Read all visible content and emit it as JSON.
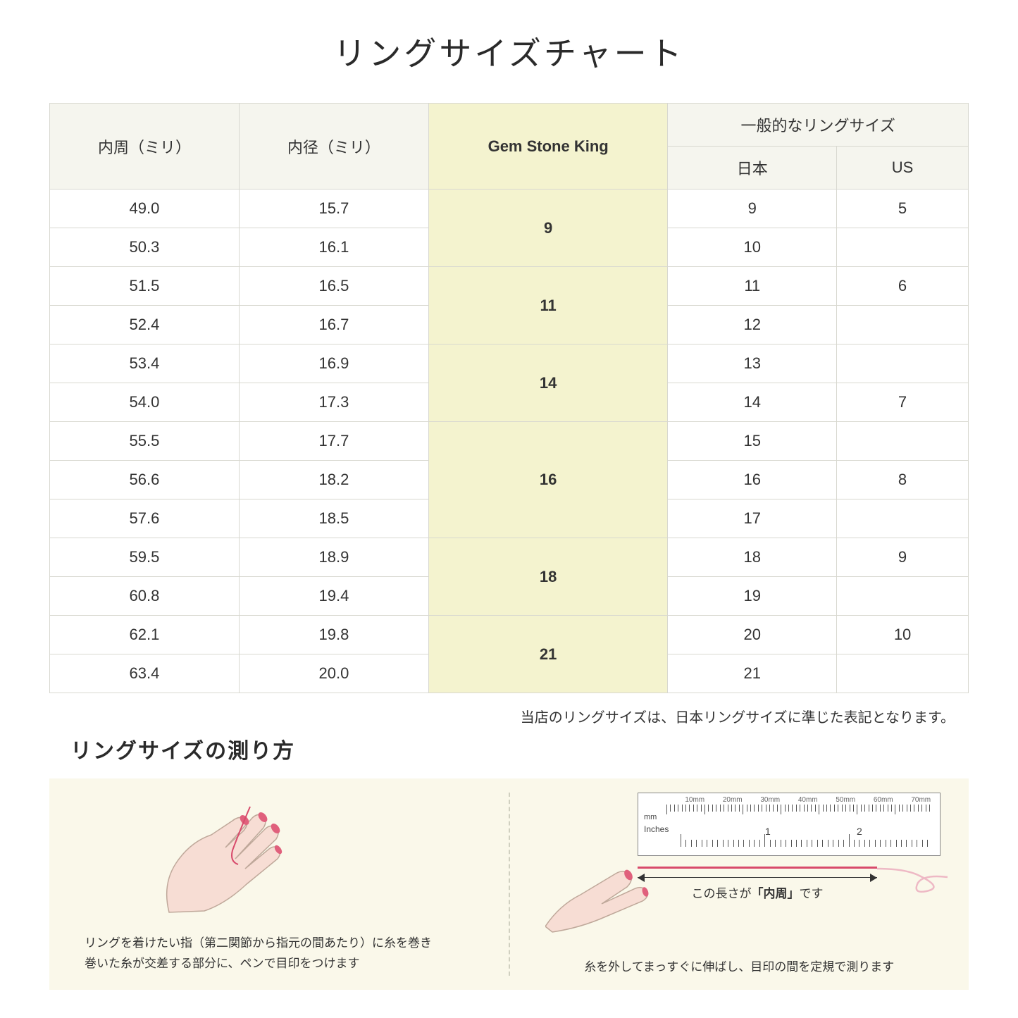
{
  "title": "リングサイズチャート",
  "table": {
    "headers": {
      "circumference": "内周（ミリ）",
      "diameter": "内径（ミリ）",
      "gsk": "Gem Stone King",
      "general": "一般的なリングサイズ",
      "japan": "日本",
      "us": "US"
    },
    "groups": [
      {
        "gsk": "9",
        "rows": [
          {
            "c": "49.0",
            "d": "15.7",
            "jp": "9",
            "us": "5"
          },
          {
            "c": "50.3",
            "d": "16.1",
            "jp": "10",
            "us": ""
          }
        ]
      },
      {
        "gsk": "11",
        "rows": [
          {
            "c": "51.5",
            "d": "16.5",
            "jp": "11",
            "us": "6"
          },
          {
            "c": "52.4",
            "d": "16.7",
            "jp": "12",
            "us": ""
          }
        ]
      },
      {
        "gsk": "14",
        "rows": [
          {
            "c": "53.4",
            "d": "16.9",
            "jp": "13",
            "us": ""
          },
          {
            "c": "54.0",
            "d": "17.3",
            "jp": "14",
            "us": "7"
          }
        ]
      },
      {
        "gsk": "16",
        "rows": [
          {
            "c": "55.5",
            "d": "17.7",
            "jp": "15",
            "us": ""
          },
          {
            "c": "56.6",
            "d": "18.2",
            "jp": "16",
            "us": "8"
          },
          {
            "c": "57.6",
            "d": "18.5",
            "jp": "17",
            "us": ""
          }
        ]
      },
      {
        "gsk": "18",
        "rows": [
          {
            "c": "59.5",
            "d": "18.9",
            "jp": "18",
            "us": "9"
          },
          {
            "c": "60.8",
            "d": "19.4",
            "jp": "19",
            "us": ""
          }
        ]
      },
      {
        "gsk": "21",
        "rows": [
          {
            "c": "62.1",
            "d": "19.8",
            "jp": "20",
            "us": "10"
          },
          {
            "c": "63.4",
            "d": "20.0",
            "jp": "21",
            "us": ""
          }
        ]
      }
    ]
  },
  "note": "当店のリングサイズは、日本リングサイズに準じた表記となります。",
  "howto_title": "リングサイズの測り方",
  "instruction_left": "リングを着けたい指（第二関節から指元の間あたり）に糸を巻き\n巻いた糸が交差する部分に、ペンで目印をつけます",
  "instruction_right": "糸を外してまっすぐに伸ばし、目印の間を定規で測ります",
  "length_label_prefix": "この長さが",
  "length_label_bold": "「内周」",
  "length_label_suffix": "です",
  "ruler": {
    "mm_labels": [
      "10mm",
      "20mm",
      "30mm",
      "40mm",
      "50mm",
      "60mm",
      "70mm"
    ],
    "mm_text": "mm",
    "inches_text": "Inches",
    "inch_1": "1",
    "inch_2": "2"
  },
  "colors": {
    "header_bg": "#f5f5ee",
    "gsk_bg": "#f4f3cf",
    "border": "#d8d8d0",
    "instruction_bg": "#faf8ea",
    "thread": "#d84a6b",
    "hand_fill": "#f7ddd4",
    "hand_stroke": "#bfa89a",
    "nail": "#e0607c"
  }
}
